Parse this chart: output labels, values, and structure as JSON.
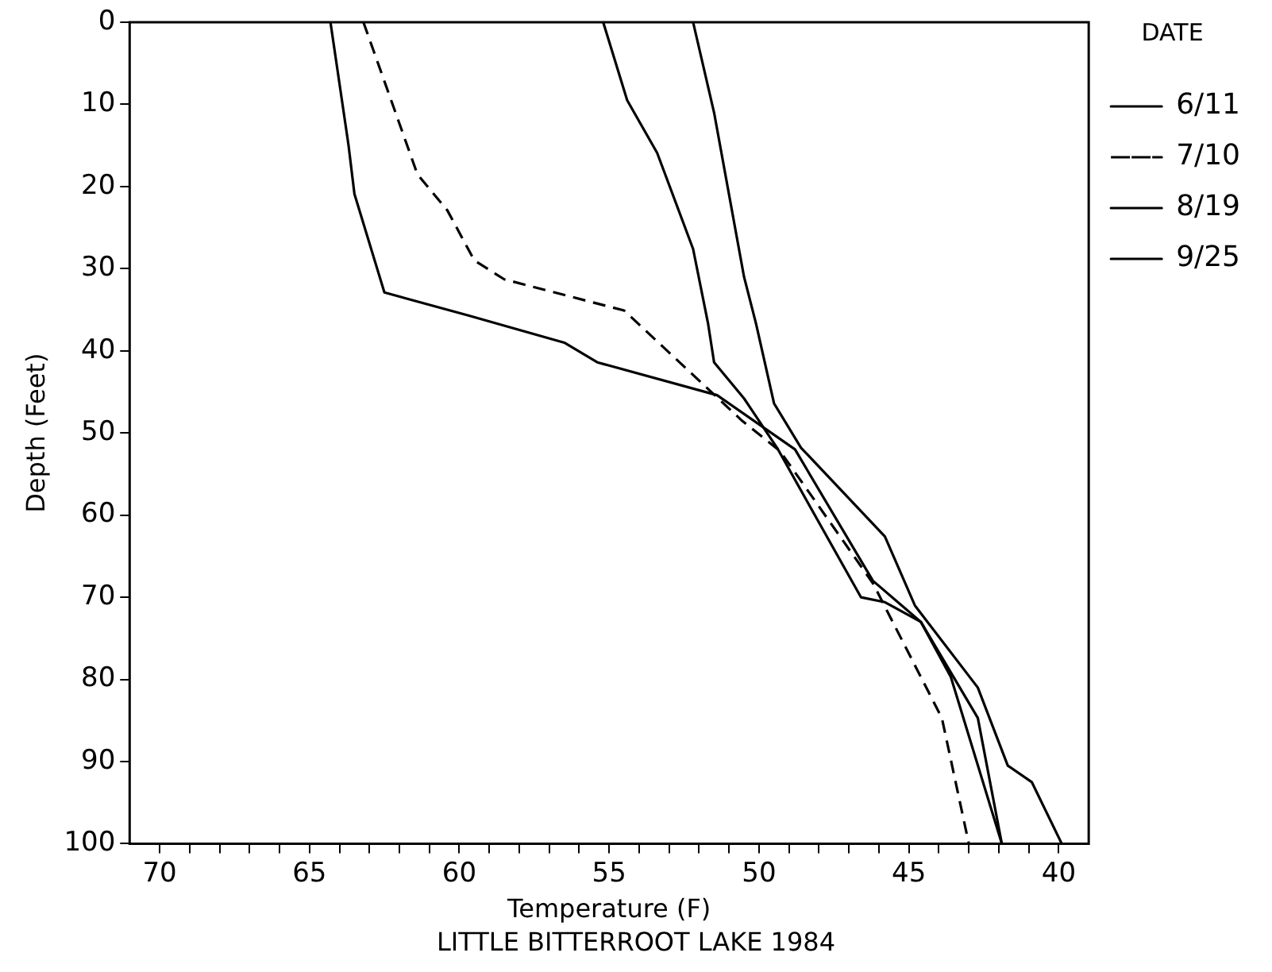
{
  "chart_data": {
    "type": "line",
    "title": "LITTLE BITTERROOT LAKE 1984",
    "xlabel": "Temperature (F)",
    "ylabel": "Depth (Feet)",
    "legend_title": "DATE",
    "legend": "right",
    "grid": false,
    "marker": "none",
    "xlim": [
      71,
      39
    ],
    "ylim": [
      100,
      0
    ],
    "xticks": [
      70,
      {
        "value": 69,
        "label": null
      },
      {
        "value": 68,
        "label": null
      },
      {
        "value": 67,
        "label": null
      },
      {
        "value": 66,
        "label": null
      },
      65,
      {
        "value": 64,
        "label": null
      },
      {
        "value": 63,
        "label": null
      },
      {
        "value": 62,
        "label": null
      },
      {
        "value": 61,
        "label": null
      },
      60,
      {
        "value": 59,
        "label": null
      },
      {
        "value": 58,
        "label": null
      },
      {
        "value": 57,
        "label": null
      },
      {
        "value": 56,
        "label": null
      },
      55,
      {
        "value": 54,
        "label": null
      },
      {
        "value": 53,
        "label": null
      },
      {
        "value": 52,
        "label": null
      },
      {
        "value": 51,
        "label": null
      },
      50,
      {
        "value": 49,
        "label": null
      },
      {
        "value": 48,
        "label": null
      },
      {
        "value": 47,
        "label": null
      },
      {
        "value": 46,
        "label": null
      },
      45,
      {
        "value": 44,
        "label": null
      },
      {
        "value": 43,
        "label": null
      },
      {
        "value": 42,
        "label": null
      },
      {
        "value": 41,
        "label": null
      },
      40
    ],
    "yticks": [
      0,
      10,
      20,
      30,
      40,
      50,
      60,
      70,
      80,
      90,
      100
    ],
    "series": [
      {
        "name": "6/11",
        "color": "#000000",
        "line_style": "solid",
        "x": [
          52.2,
          51.5,
          50.5,
          50.1,
          49.5,
          48.6,
          45.8,
          44.8,
          42.7,
          41.7,
          40.9,
          39.9
        ],
        "values": [
          0,
          11,
          31,
          36.7,
          46.4,
          51.8,
          62.6,
          71,
          81,
          90.5,
          92.5,
          100
        ]
      },
      {
        "name": "7/10",
        "color": "#000000",
        "line_style": "dashed",
        "x": [
          63.2,
          61.4,
          60.4,
          59.5,
          58.5,
          54.5,
          50.6,
          49.3,
          46.2,
          43.9,
          43.0
        ],
        "values": [
          0,
          18.5,
          22.9,
          29,
          31.3,
          35.1,
          48.4,
          52.2,
          68.3,
          84.7,
          100
        ]
      },
      {
        "name": "8/19",
        "color": "#000000",
        "line_style": "solid",
        "x": [
          64.3,
          63.7,
          63.5,
          62.5,
          59.7,
          56.5,
          55.4,
          51.4,
          48.8,
          46.2,
          44.6,
          42.7,
          41.9
        ],
        "values": [
          0,
          14.9,
          20.9,
          32.9,
          35.7,
          39,
          41.4,
          45.4,
          52,
          68,
          73,
          84.7,
          100
        ]
      },
      {
        "name": "9/25",
        "color": "#000000",
        "line_style": "solid",
        "x": [
          55.2,
          54.4,
          53.4,
          52.2,
          51.7,
          51.5,
          50.5,
          49.4,
          46.6,
          45.8,
          44.6,
          43.6,
          41.9
        ],
        "values": [
          0,
          9.5,
          15.9,
          27.6,
          36.7,
          41.4,
          45.8,
          51.8,
          70,
          70.6,
          73,
          79.7,
          100
        ]
      }
    ]
  }
}
